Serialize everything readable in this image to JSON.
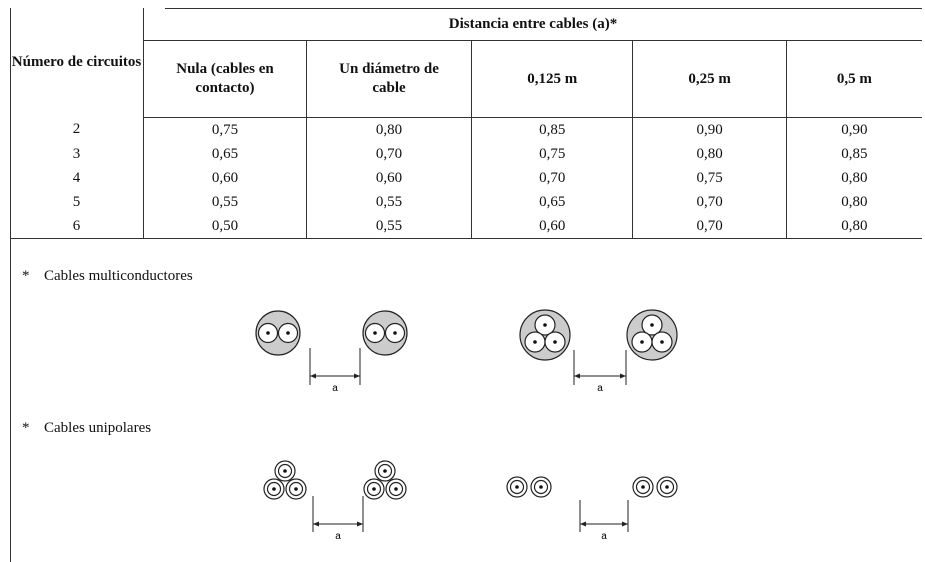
{
  "table": {
    "corner_header": "Número de circuitos",
    "group_header": "Distancia entre cables (a)*",
    "column_headers": [
      "Nula (cables en contacto)",
      "Un diámetro de cable",
      "0,125 m",
      "0,25 m",
      "0,5 m"
    ],
    "rows": [
      [
        "2",
        "0,75",
        "0,80",
        "0,85",
        "0,90",
        "0,90"
      ],
      [
        "3",
        "0,65",
        "0,70",
        "0,75",
        "0,80",
        "0,85"
      ],
      [
        "4",
        "0,60",
        "0,60",
        "0,70",
        "0,75",
        "0,80"
      ],
      [
        "5",
        "0,55",
        "0,55",
        "0,65",
        "0,70",
        "0,80"
      ],
      [
        "6",
        "0,50",
        "0,55",
        "0,60",
        "0,70",
        "0,80"
      ]
    ]
  },
  "notes": [
    {
      "marker": "*",
      "label": "Cables multiconductores",
      "figures": [
        {
          "dimension_label": "a"
        },
        {
          "dimension_label": "a"
        }
      ]
    },
    {
      "marker": "*",
      "label": "Cables unipolares",
      "figures": [
        {
          "dimension_label": "a"
        },
        {
          "dimension_label": "a"
        }
      ]
    }
  ]
}
